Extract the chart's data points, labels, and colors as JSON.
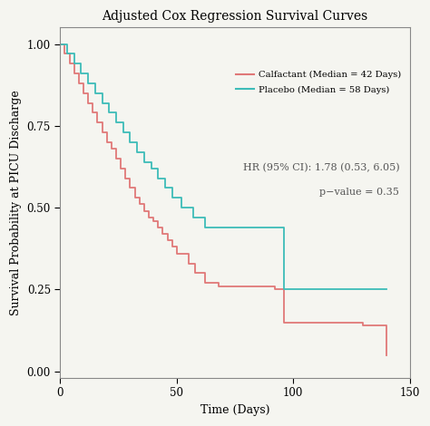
{
  "title": "Adjusted Cox Regression Survival Curves",
  "xlabel": "Time (Days)",
  "ylabel": "Survival Probability at PICU Discharge",
  "xlim": [
    0,
    150
  ],
  "ylim": [
    -0.02,
    1.05
  ],
  "calfactant_color": "#E07878",
  "placebo_color": "#3DBCB8",
  "legend_label_calfactant": "Calfactant (Median = 42 Days)",
  "legend_label_placebo": "Placebo (Median = 58 Days)",
  "hr_text": "HR (95% CI): 1.78 (0.53, 6.05)",
  "pvalue_text": "p−value = 0.35",
  "yticks": [
    0.0,
    0.25,
    0.5,
    0.75,
    1.0
  ],
  "xticks": [
    0,
    50,
    100,
    150
  ],
  "calfactant_x": [
    0,
    2,
    4,
    6,
    8,
    10,
    12,
    14,
    16,
    18,
    20,
    22,
    24,
    26,
    28,
    30,
    32,
    34,
    36,
    38,
    40,
    42,
    44,
    46,
    48,
    50,
    55,
    58,
    62,
    65,
    68,
    92,
    96,
    130,
    140
  ],
  "calfactant_y": [
    1.0,
    0.97,
    0.94,
    0.91,
    0.88,
    0.85,
    0.82,
    0.79,
    0.76,
    0.73,
    0.7,
    0.68,
    0.65,
    0.62,
    0.59,
    0.56,
    0.53,
    0.51,
    0.49,
    0.47,
    0.46,
    0.44,
    0.42,
    0.4,
    0.38,
    0.36,
    0.33,
    0.3,
    0.27,
    0.27,
    0.26,
    0.25,
    0.15,
    0.14,
    0.05
  ],
  "placebo_x": [
    0,
    3,
    6,
    9,
    12,
    15,
    18,
    21,
    24,
    27,
    30,
    33,
    36,
    39,
    42,
    45,
    48,
    52,
    57,
    62,
    92,
    96,
    140
  ],
  "placebo_y": [
    1.0,
    0.97,
    0.94,
    0.91,
    0.88,
    0.85,
    0.82,
    0.79,
    0.76,
    0.73,
    0.7,
    0.67,
    0.64,
    0.62,
    0.59,
    0.56,
    0.53,
    0.5,
    0.47,
    0.44,
    0.44,
    0.25,
    0.25
  ],
  "background_color": "#f5f5f0",
  "fig_bg": "#f5f5f0"
}
